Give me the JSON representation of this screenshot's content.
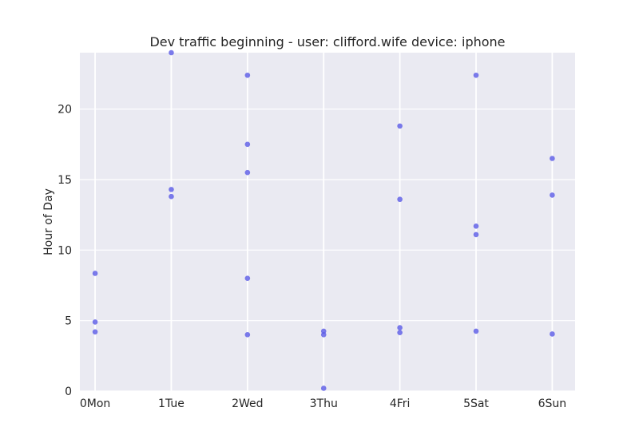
{
  "chart_data": {
    "type": "scatter",
    "title": "Dev traffic beginning - user: clifford.wife device: iphone",
    "xlabel": "",
    "ylabel": "Hour of Day",
    "categories": [
      "0Mon",
      "1Tue",
      "2Wed",
      "3Thu",
      "4Fri",
      "5Sat",
      "6Sun"
    ],
    "xlim": [
      -0.2,
      6.3
    ],
    "ylim": [
      0,
      24
    ],
    "yticks": [
      0,
      5,
      10,
      15,
      20
    ],
    "grid": true,
    "colors": {
      "background": "#EAEAF2",
      "grid": "#FFFFFF",
      "point": "#5A5AE6"
    },
    "series": [
      {
        "points": [
          {
            "x": 0,
            "y": 8.35
          },
          {
            "x": 0,
            "y": 4.9
          },
          {
            "x": 0,
            "y": 4.2
          },
          {
            "x": 1,
            "y": 24.0
          },
          {
            "x": 1,
            "y": 14.3
          },
          {
            "x": 1,
            "y": 13.8
          },
          {
            "x": 2,
            "y": 22.4
          },
          {
            "x": 2,
            "y": 17.5
          },
          {
            "x": 2,
            "y": 15.5
          },
          {
            "x": 2,
            "y": 8.0
          },
          {
            "x": 2,
            "y": 4.0
          },
          {
            "x": 3,
            "y": 4.25
          },
          {
            "x": 3,
            "y": 4.0
          },
          {
            "x": 3,
            "y": 0.2
          },
          {
            "x": 4,
            "y": 18.8
          },
          {
            "x": 4,
            "y": 13.6
          },
          {
            "x": 4,
            "y": 4.5
          },
          {
            "x": 4,
            "y": 4.15
          },
          {
            "x": 5,
            "y": 22.4
          },
          {
            "x": 5,
            "y": 11.7
          },
          {
            "x": 5,
            "y": 11.1
          },
          {
            "x": 5,
            "y": 4.25
          },
          {
            "x": 6,
            "y": 16.5
          },
          {
            "x": 6,
            "y": 13.9
          },
          {
            "x": 6,
            "y": 4.05
          }
        ]
      }
    ]
  }
}
